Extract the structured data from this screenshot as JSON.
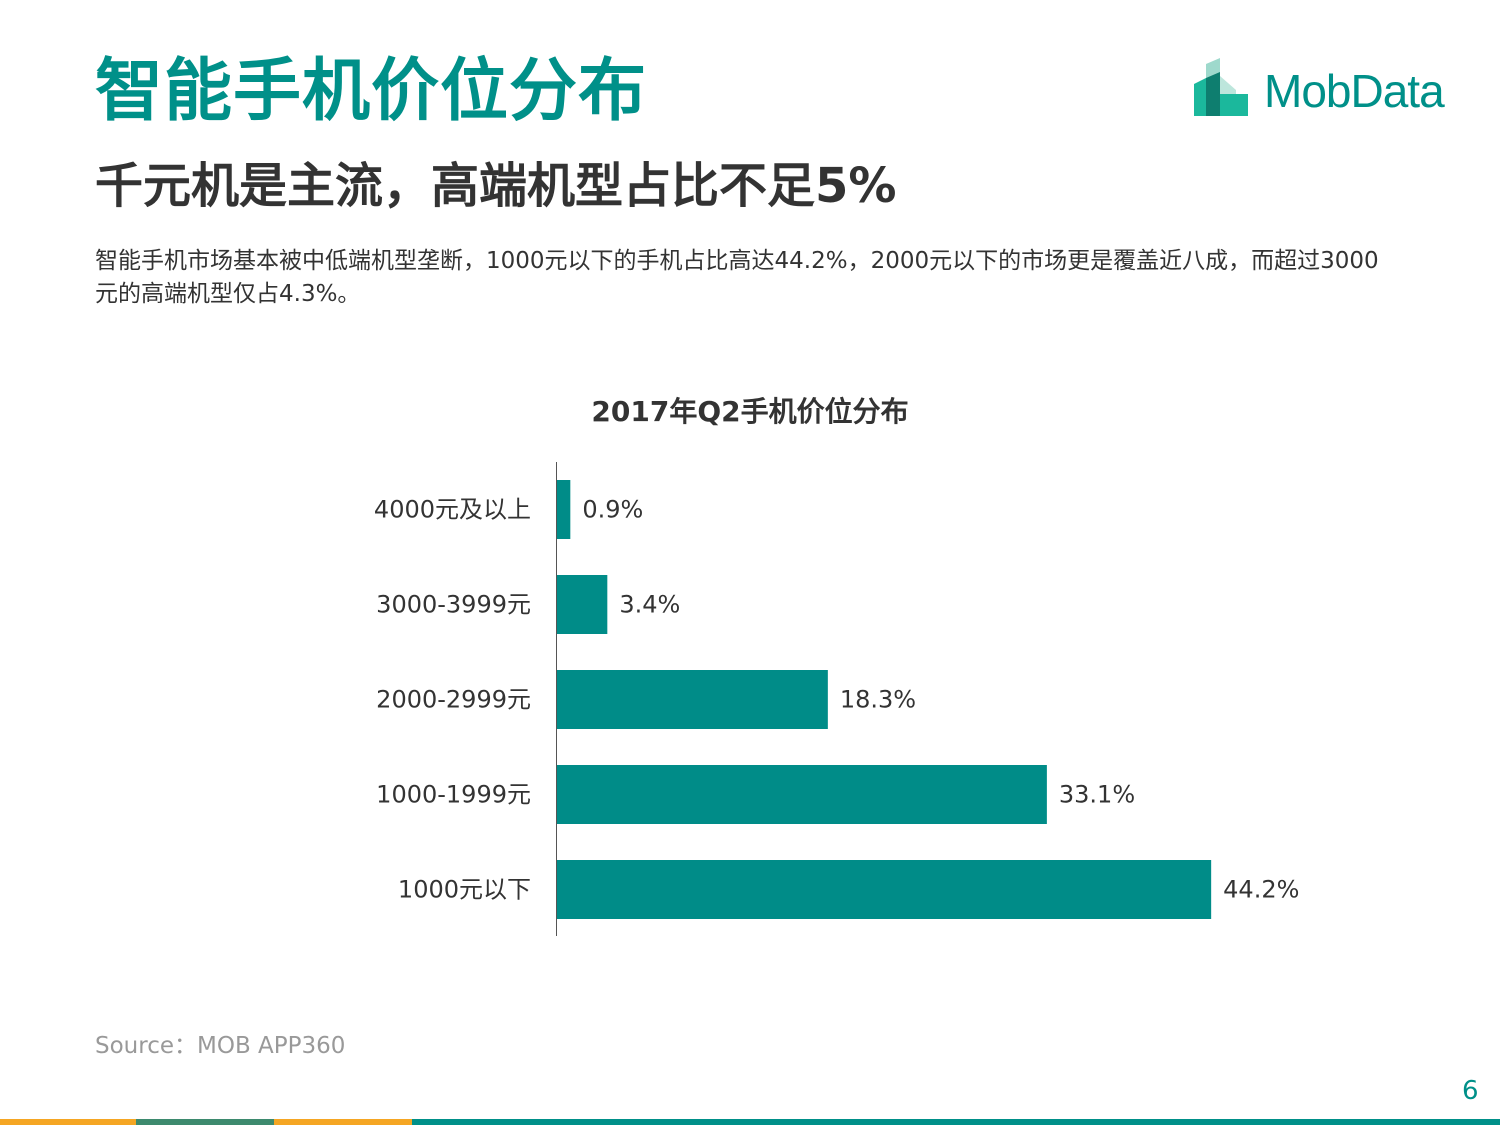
{
  "header": {
    "title": "智能手机价位分布",
    "subtitle": "千元机是主流，高端机型占比不足5%",
    "description": "智能手机市场基本被中低端机型垄断，1000元以下的手机占比高达44.2%，2000元以下的市场更是覆盖近八成，而超过3000元的高端机型仅占4.3%。"
  },
  "logo": {
    "text": "MobData",
    "color": "#009089"
  },
  "chart_data": {
    "type": "bar",
    "orientation": "horizontal",
    "title": "2017年Q2手机价位分布",
    "categories": [
      "4000元及以上",
      "3000-3999元",
      "2000-2999元",
      "1000-1999元",
      "1000元以下"
    ],
    "values": [
      0.9,
      3.4,
      18.3,
      33.1,
      44.2
    ],
    "value_labels": [
      "0.9%",
      "3.4%",
      "18.3%",
      "33.1%",
      "44.2%"
    ],
    "unit": "%",
    "xlim": [
      0,
      50
    ],
    "grid": false,
    "legend": "none",
    "bar_color": "#008C88"
  },
  "footer": {
    "source": "Source：MOB APP360",
    "page_number": "6",
    "bar_colors": [
      "#F5A623",
      "#3D8A6E",
      "#F5A623",
      "#009089"
    ]
  }
}
